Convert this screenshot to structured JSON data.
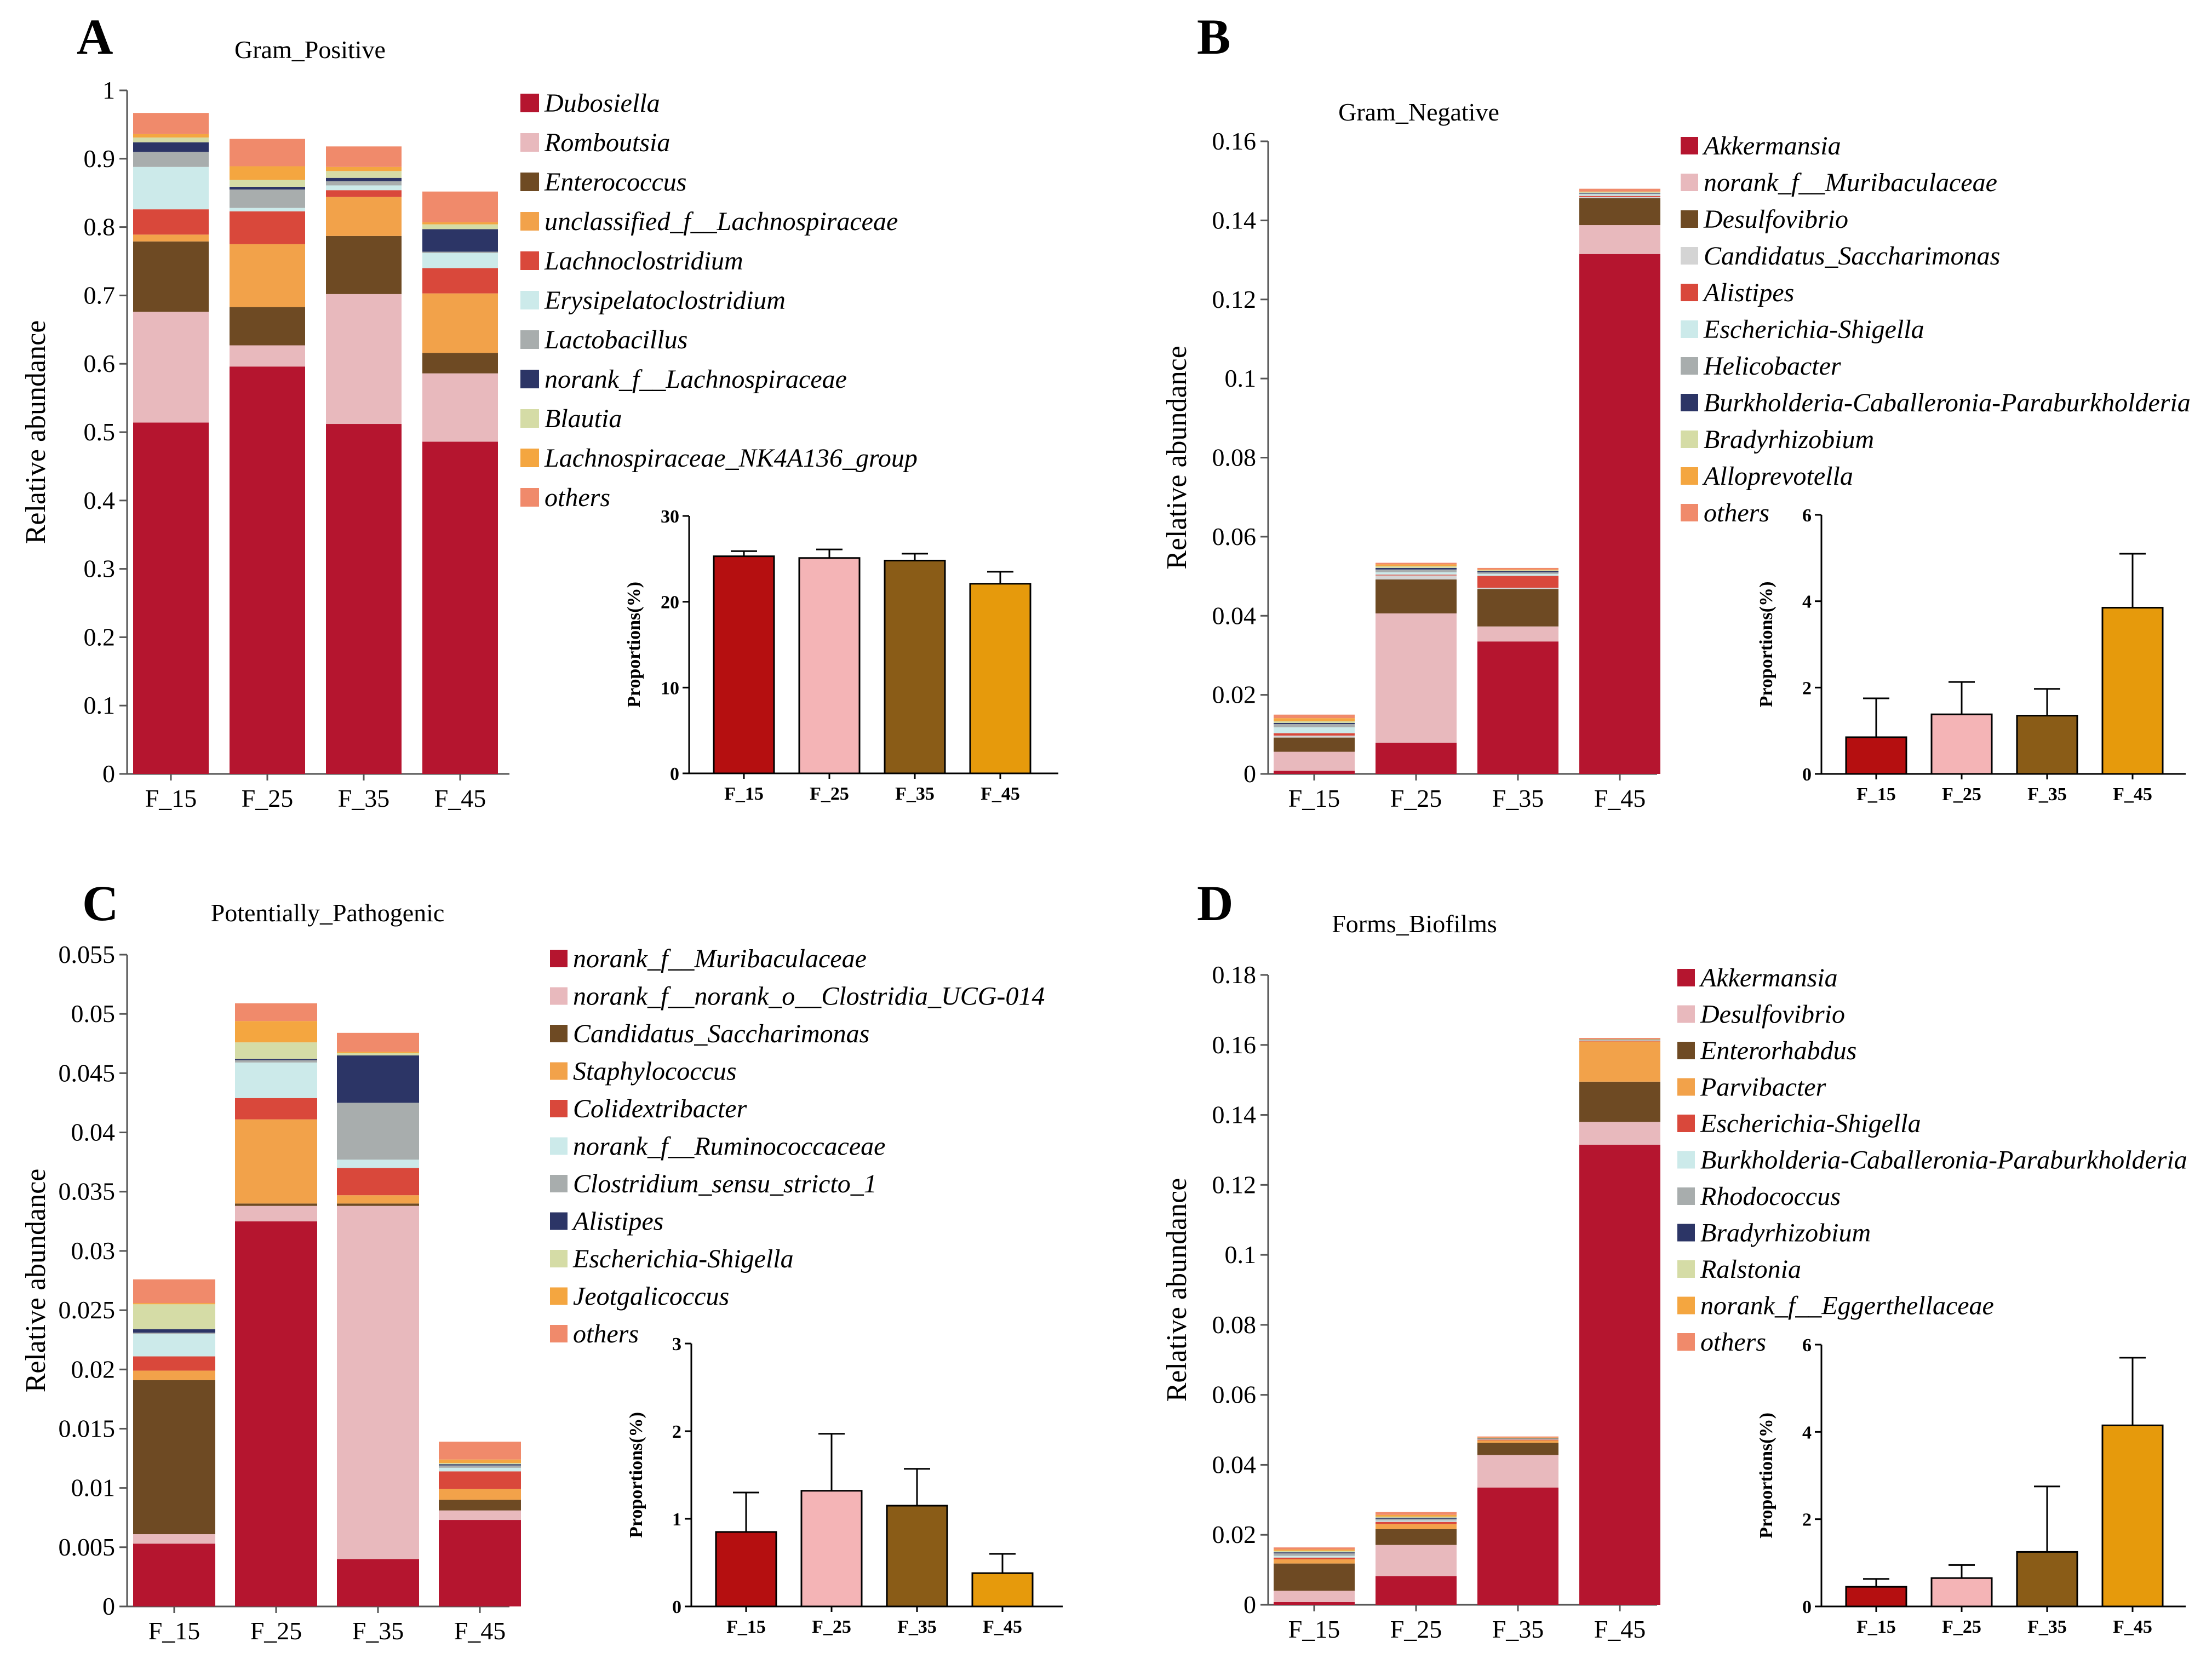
{
  "chart_data": [
    {
      "panel": "A",
      "type": "bar",
      "stacked": true,
      "title": "Gram_Positive",
      "ylabel": "Relative abundance",
      "xlabel": "",
      "ylim": [
        0,
        1
      ],
      "yticks": [
        "0",
        "0.1",
        "0.2",
        "0.3",
        "0.4",
        "0.5",
        "0.6",
        "0.7",
        "0.8",
        "0.9",
        "1"
      ],
      "categories": [
        "F_15",
        "F_25",
        "F_35",
        "F_45"
      ],
      "series": [
        {
          "name": "Dubosiella",
          "color": "#b5152f",
          "values": [
            0.514,
            0.596,
            0.512,
            0.486
          ]
        },
        {
          "name": "Romboutsia",
          "color": "#e8b9bd",
          "values": [
            0.162,
            0.031,
            0.19,
            0.1
          ]
        },
        {
          "name": "Enterococcus",
          "color": "#6e4a23",
          "values": [
            0.103,
            0.056,
            0.085,
            0.03
          ]
        },
        {
          "name": "unclassified_f__Lachnospiraceae",
          "color": "#f2a24a",
          "values": [
            0.01,
            0.092,
            0.057,
            0.087
          ]
        },
        {
          "name": "Lachnoclostridium",
          "color": "#d9483b",
          "values": [
            0.037,
            0.048,
            0.01,
            0.037
          ]
        },
        {
          "name": "Erysipelatoclostridium",
          "color": "#cceaea",
          "values": [
            0.062,
            0.005,
            0.007,
            0.022
          ]
        },
        {
          "name": "Lactobacillus",
          "color": "#a8adad",
          "values": [
            0.022,
            0.027,
            0.006,
            0.002
          ]
        },
        {
          "name": "norank_f__Lachnospiraceae",
          "color": "#2c3566",
          "values": [
            0.014,
            0.004,
            0.005,
            0.033
          ]
        },
        {
          "name": "Blautia",
          "color": "#d5dca6",
          "values": [
            0.007,
            0.01,
            0.01,
            0.007
          ]
        },
        {
          "name": "Lachnospiraceae_NK4A136_group",
          "color": "#f4a640",
          "values": [
            0.005,
            0.02,
            0.006,
            0.003
          ]
        },
        {
          "name": "others",
          "color": "#f08a6b",
          "values": [
            0.031,
            0.04,
            0.03,
            0.045
          ]
        }
      ],
      "inset": {
        "type": "bar",
        "ylabel": "Proportions(%)",
        "ylim": [
          0,
          30
        ],
        "yticks": [
          "0",
          "10",
          "20",
          "30"
        ],
        "categories": [
          "F_15",
          "F_25",
          "F_35",
          "F_45"
        ],
        "colors": [
          "#b50f10",
          "#f4b4b6",
          "#8a5c17",
          "#e69a0c"
        ],
        "values": [
          25.3,
          25.1,
          24.8,
          22.1
        ],
        "errors": [
          0.6,
          1.0,
          0.8,
          1.4
        ]
      }
    },
    {
      "panel": "B",
      "type": "bar",
      "stacked": true,
      "title": "Gram_Negative",
      "ylabel": "Relative abundance",
      "xlabel": "",
      "ylim": [
        0,
        0.16
      ],
      "yticks": [
        "0",
        "0.02",
        "0.04",
        "0.06",
        "0.08",
        "0.1",
        "0.12",
        "0.14",
        "0.16"
      ],
      "categories": [
        "F_15",
        "F_25",
        "F_35",
        "F_45"
      ],
      "series": [
        {
          "name": "Akkermansia",
          "color": "#b5152f",
          "values": [
            0.0008,
            0.0079,
            0.0335,
            0.1315
          ]
        },
        {
          "name": "norank_f__Muribaculaceae",
          "color": "#e8b9bd",
          "values": [
            0.0048,
            0.0327,
            0.0038,
            0.0073
          ]
        },
        {
          "name": "Desulfovibrio",
          "color": "#6e4a23",
          "values": [
            0.0036,
            0.0086,
            0.0095,
            0.0068
          ]
        },
        {
          "name": "Candidatus_Saccharimonas",
          "color": "#d4d4d4",
          "values": [
            0.0005,
            0.001,
            0.0003,
            0.0003
          ]
        },
        {
          "name": "Alistipes",
          "color": "#d9483b",
          "values": [
            0.0006,
            0.0002,
            0.003,
            0.0003
          ]
        },
        {
          "name": "Escherichia-Shigella",
          "color": "#cceaea",
          "values": [
            0.0015,
            0.0006,
            0.0005,
            0.0004
          ]
        },
        {
          "name": "Helicobacter",
          "color": "#a8adad",
          "values": [
            0.0008,
            0.0007,
            0.0004,
            0.0002
          ]
        },
        {
          "name": "Burkholderia-Caballeronia-Paraburkholderia",
          "color": "#2c3566",
          "values": [
            0.0003,
            0.0004,
            0.0003,
            0.0002
          ]
        },
        {
          "name": "Bradyrhizobium",
          "color": "#d5dca6",
          "values": [
            0.0004,
            0.0004,
            0.0002,
            0.0002
          ]
        },
        {
          "name": "Alloprevotella",
          "color": "#f4a640",
          "values": [
            0.0008,
            0.0005,
            0.0002,
            0.0001
          ]
        },
        {
          "name": "others",
          "color": "#f08a6b",
          "values": [
            0.0009,
            0.0004,
            0.0004,
            0.0007
          ]
        }
      ],
      "inset": {
        "type": "bar",
        "ylabel": "Proportions(%)",
        "ylim": [
          0,
          6
        ],
        "yticks": [
          "0",
          "2",
          "4",
          "6"
        ],
        "categories": [
          "F_15",
          "F_25",
          "F_35",
          "F_45"
        ],
        "colors": [
          "#b50f10",
          "#f4b4b6",
          "#8a5c17",
          "#e69a0c"
        ],
        "values": [
          0.85,
          1.38,
          1.35,
          3.85
        ],
        "errors": [
          0.9,
          0.75,
          0.62,
          1.25
        ]
      }
    },
    {
      "panel": "C",
      "type": "bar",
      "stacked": true,
      "title": "Potentially_Pathogenic",
      "ylabel": "Relative abundance",
      "xlabel": "",
      "ylim": [
        0,
        0.055
      ],
      "yticks": [
        "0",
        "0.005",
        "0.01",
        "0.015",
        "0.02",
        "0.025",
        "0.03",
        "0.035",
        "0.04",
        "0.045",
        "0.05",
        "0.055"
      ],
      "categories": [
        "F_15",
        "F_25",
        "F_35",
        "F_45"
      ],
      "series": [
        {
          "name": "norank_f__Muribaculaceae",
          "color": "#b5152f",
          "values": [
            0.0053,
            0.0325,
            0.004,
            0.0073
          ]
        },
        {
          "name": "norank_f__norank_o__Clostridia_UCG-014",
          "color": "#e8b9bd",
          "values": [
            0.0008,
            0.0013,
            0.0298,
            0.0008
          ]
        },
        {
          "name": "Candidatus_Saccharimonas",
          "color": "#6e4a23",
          "values": [
            0.013,
            0.0002,
            0.0002,
            0.0009
          ]
        },
        {
          "name": "Staphylococcus",
          "color": "#f2a24a",
          "values": [
            0.0008,
            0.0071,
            0.0007,
            0.0009
          ]
        },
        {
          "name": "Colidextribacter",
          "color": "#d9483b",
          "values": [
            0.0012,
            0.0018,
            0.0023,
            0.0015
          ]
        },
        {
          "name": "norank_f__Ruminococcaceae",
          "color": "#cceaea",
          "values": [
            0.0019,
            0.003,
            0.0007,
            0.0003
          ]
        },
        {
          "name": "Clostridium_sensu_stricto_1",
          "color": "#a8adad",
          "values": [
            0.0001,
            0.0002,
            0.0048,
            0.0002
          ]
        },
        {
          "name": "Alistipes",
          "color": "#2c3566",
          "values": [
            0.0003,
            0.0001,
            0.004,
            0.0001
          ]
        },
        {
          "name": "Escherichia-Shigella",
          "color": "#d5dca6",
          "values": [
            0.0021,
            0.0014,
            0.0002,
            0.0001
          ]
        },
        {
          "name": "Jeotgalicoccus",
          "color": "#f4a640",
          "values": [
            0.0001,
            0.0018,
            0.0001,
            0.0003
          ]
        },
        {
          "name": "others",
          "color": "#f08a6b",
          "values": [
            0.002,
            0.0015,
            0.0016,
            0.0015
          ]
        }
      ],
      "inset": {
        "type": "bar",
        "ylabel": "Proportions(%)",
        "ylim": [
          0,
          3
        ],
        "yticks": [
          "0",
          "1",
          "2",
          "3"
        ],
        "categories": [
          "F_15",
          "F_25",
          "F_35",
          "F_45"
        ],
        "colors": [
          "#b50f10",
          "#f4b4b6",
          "#8a5c17",
          "#e69a0c"
        ],
        "values": [
          0.85,
          1.32,
          1.15,
          0.38
        ],
        "errors": [
          0.45,
          0.65,
          0.42,
          0.22
        ]
      }
    },
    {
      "panel": "D",
      "type": "bar",
      "stacked": true,
      "title": "Forms_Biofilms",
      "ylabel": "Relative abundance",
      "xlabel": "",
      "ylim": [
        0,
        0.18
      ],
      "yticks": [
        "0",
        "0.02",
        "0.04",
        "0.06",
        "0.08",
        "0.1",
        "0.12",
        "0.14",
        "0.16",
        "0.18"
      ],
      "categories": [
        "F_15",
        "F_25",
        "F_35",
        "F_45"
      ],
      "series": [
        {
          "name": "Akkermansia",
          "color": "#b5152f",
          "values": [
            0.0008,
            0.0082,
            0.0335,
            0.1315
          ]
        },
        {
          "name": "Desulfovibrio",
          "color": "#e8b9bd",
          "values": [
            0.0032,
            0.0089,
            0.0093,
            0.0065
          ]
        },
        {
          "name": "Enterorhabdus",
          "color": "#6e4a23",
          "values": [
            0.0078,
            0.0045,
            0.0035,
            0.0115
          ]
        },
        {
          "name": "Parvibacter",
          "color": "#f2a24a",
          "values": [
            0.0012,
            0.0015,
            0.0007,
            0.0115
          ]
        },
        {
          "name": "Escherichia-Shigella",
          "color": "#d9483b",
          "values": [
            0.0005,
            0.0006,
            0.0002,
            0.0002
          ]
        },
        {
          "name": "Burkholderia-Caballeronia-Paraburkholderia",
          "color": "#cceaea",
          "values": [
            0.0005,
            0.0004,
            0.0001,
            0.0001
          ]
        },
        {
          "name": "Rhodococcus",
          "color": "#a8adad",
          "values": [
            0.0007,
            0.0005,
            0.0001,
            0.0001
          ]
        },
        {
          "name": "Bradyrhizobium",
          "color": "#2c3566",
          "values": [
            0.0003,
            0.0003,
            0.0001,
            0.0001
          ]
        },
        {
          "name": "Ralstonia",
          "color": "#d5dca6",
          "values": [
            0.0004,
            0.0003,
            0.0001,
            0.0001
          ]
        },
        {
          "name": "norank_f__Eggerthellaceae",
          "color": "#f4a640",
          "values": [
            0.0004,
            0.0005,
            0.0002,
            0.0001
          ]
        },
        {
          "name": "others",
          "color": "#f08a6b",
          "values": [
            0.0006,
            0.0008,
            0.0003,
            0.0003
          ]
        }
      ],
      "inset": {
        "type": "bar",
        "ylabel": "Proportions(%)",
        "ylim": [
          0,
          6
        ],
        "yticks": [
          "0",
          "2",
          "4",
          "6"
        ],
        "categories": [
          "F_15",
          "F_25",
          "F_35",
          "F_45"
        ],
        "colors": [
          "#b50f10",
          "#f4b4b6",
          "#8a5c17",
          "#e69a0c"
        ],
        "values": [
          0.45,
          0.65,
          1.25,
          4.15
        ],
        "errors": [
          0.18,
          0.3,
          1.5,
          1.55
        ]
      }
    }
  ]
}
